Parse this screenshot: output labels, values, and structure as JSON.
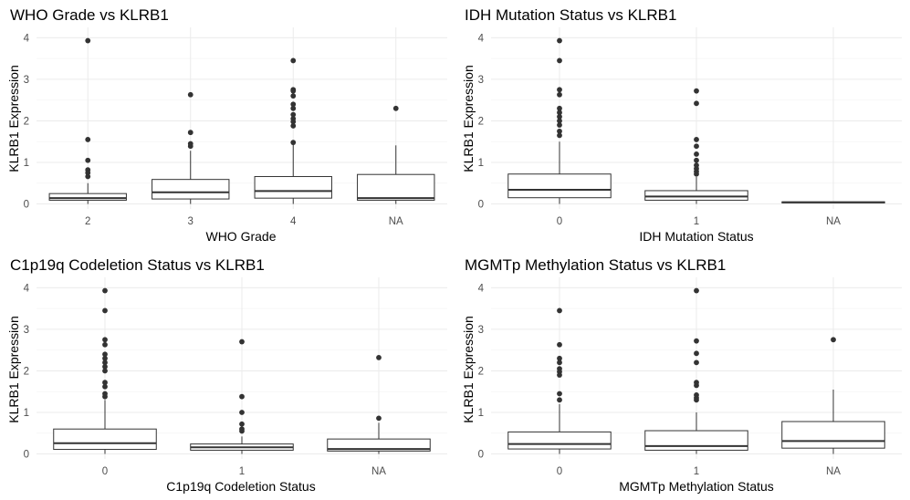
{
  "chart_data": [
    {
      "type": "box",
      "title": "WHO Grade vs KLRB1",
      "xlabel": "WHO Grade",
      "ylabel": "KLRB1 Expression",
      "ylim": [
        0,
        4
      ],
      "yticks": [
        0,
        1,
        2,
        3,
        4
      ],
      "categories": [
        "2",
        "3",
        "4",
        "NA"
      ],
      "boxes": [
        {
          "category": "2",
          "q1": 0.09,
          "median": 0.14,
          "q3": 0.25,
          "whisker_low": 0.0,
          "whisker_high": 0.5,
          "outliers": [
            3.93,
            1.55,
            1.05,
            0.82,
            0.75,
            0.66
          ]
        },
        {
          "category": "3",
          "q1": 0.12,
          "median": 0.28,
          "q3": 0.59,
          "whisker_low": 0.0,
          "whisker_high": 1.28,
          "outliers": [
            2.63,
            1.72,
            1.45,
            1.39
          ]
        },
        {
          "category": "4",
          "q1": 0.14,
          "median": 0.31,
          "q3": 0.66,
          "whisker_low": 0.0,
          "whisker_high": 1.42,
          "outliers": [
            3.45,
            2.75,
            2.72,
            2.6,
            2.4,
            2.3,
            2.15,
            2.05,
            1.98,
            1.88,
            1.48
          ]
        },
        {
          "category": "NA",
          "q1": 0.09,
          "median": 0.14,
          "q3": 0.71,
          "whisker_low": 0.0,
          "whisker_high": 1.41,
          "outliers": [
            2.3
          ]
        }
      ]
    },
    {
      "type": "box",
      "title": "IDH Mutation Status vs KLRB1",
      "xlabel": "IDH Mutation Status",
      "ylabel": "KLRB1 Expression",
      "ylim": [
        0,
        4
      ],
      "yticks": [
        0,
        1,
        2,
        3,
        4
      ],
      "categories": [
        "0",
        "1",
        "NA"
      ],
      "boxes": [
        {
          "category": "0",
          "q1": 0.15,
          "median": 0.34,
          "q3": 0.72,
          "whisker_low": 0.0,
          "whisker_high": 1.5,
          "outliers": [
            3.93,
            3.45,
            2.75,
            2.63,
            2.3,
            2.2,
            2.1,
            2.0,
            1.9,
            1.75,
            1.65
          ]
        },
        {
          "category": "1",
          "q1": 0.09,
          "median": 0.18,
          "q3": 0.32,
          "whisker_low": 0.0,
          "whisker_high": 0.65,
          "outliers": [
            2.72,
            2.42,
            1.55,
            1.39,
            1.2,
            1.05,
            0.93,
            0.85,
            0.78,
            0.72
          ]
        },
        {
          "category": "NA",
          "q1": 0.03,
          "median": 0.04,
          "q3": 0.05,
          "whisker_low": 0.03,
          "whisker_high": 0.05,
          "outliers": []
        }
      ]
    },
    {
      "type": "box",
      "title": "C1p19q Codeletion Status vs KLRB1",
      "xlabel": "C1p19q Codeletion Status",
      "ylabel": "KLRB1 Expression",
      "ylim": [
        0,
        4
      ],
      "yticks": [
        0,
        1,
        2,
        3,
        4
      ],
      "categories": [
        "0",
        "1",
        "NA"
      ],
      "boxes": [
        {
          "category": "0",
          "q1": 0.11,
          "median": 0.26,
          "q3": 0.6,
          "whisker_low": 0.0,
          "whisker_high": 1.3,
          "outliers": [
            3.93,
            3.45,
            2.75,
            2.63,
            2.4,
            2.3,
            2.2,
            2.1,
            2.0,
            1.72,
            1.62,
            1.45,
            1.38
          ]
        },
        {
          "category": "1",
          "q1": 0.09,
          "median": 0.16,
          "q3": 0.24,
          "whisker_low": 0.0,
          "whisker_high": 0.42,
          "outliers": [
            2.7,
            1.38,
            1.0,
            0.72,
            0.6,
            0.55
          ]
        },
        {
          "category": "NA",
          "q1": 0.07,
          "median": 0.12,
          "q3": 0.36,
          "whisker_low": 0.0,
          "whisker_high": 0.75,
          "outliers": [
            2.32,
            0.86
          ]
        }
      ]
    },
    {
      "type": "box",
      "title": "MGMTp Methylation Status vs KLRB1",
      "xlabel": "MGMTp Methylation Status",
      "ylabel": "KLRB1 Expression",
      "ylim": [
        0,
        4
      ],
      "yticks": [
        0,
        1,
        2,
        3,
        4
      ],
      "categories": [
        "0",
        "1",
        "NA"
      ],
      "boxes": [
        {
          "category": "0",
          "q1": 0.12,
          "median": 0.24,
          "q3": 0.53,
          "whisker_low": 0.0,
          "whisker_high": 1.2,
          "outliers": [
            3.45,
            2.63,
            2.3,
            2.2,
            2.05,
            1.98,
            1.9,
            1.45,
            1.3
          ]
        },
        {
          "category": "1",
          "q1": 0.09,
          "median": 0.19,
          "q3": 0.56,
          "whisker_low": 0.0,
          "whisker_high": 1.0,
          "outliers": [
            3.93,
            2.72,
            2.42,
            2.2,
            1.72,
            1.65,
            1.42,
            1.35,
            1.3
          ]
        },
        {
          "category": "NA",
          "q1": 0.14,
          "median": 0.31,
          "q3": 0.78,
          "whisker_low": 0.0,
          "whisker_high": 1.55,
          "outliers": [
            2.75
          ]
        }
      ]
    }
  ]
}
